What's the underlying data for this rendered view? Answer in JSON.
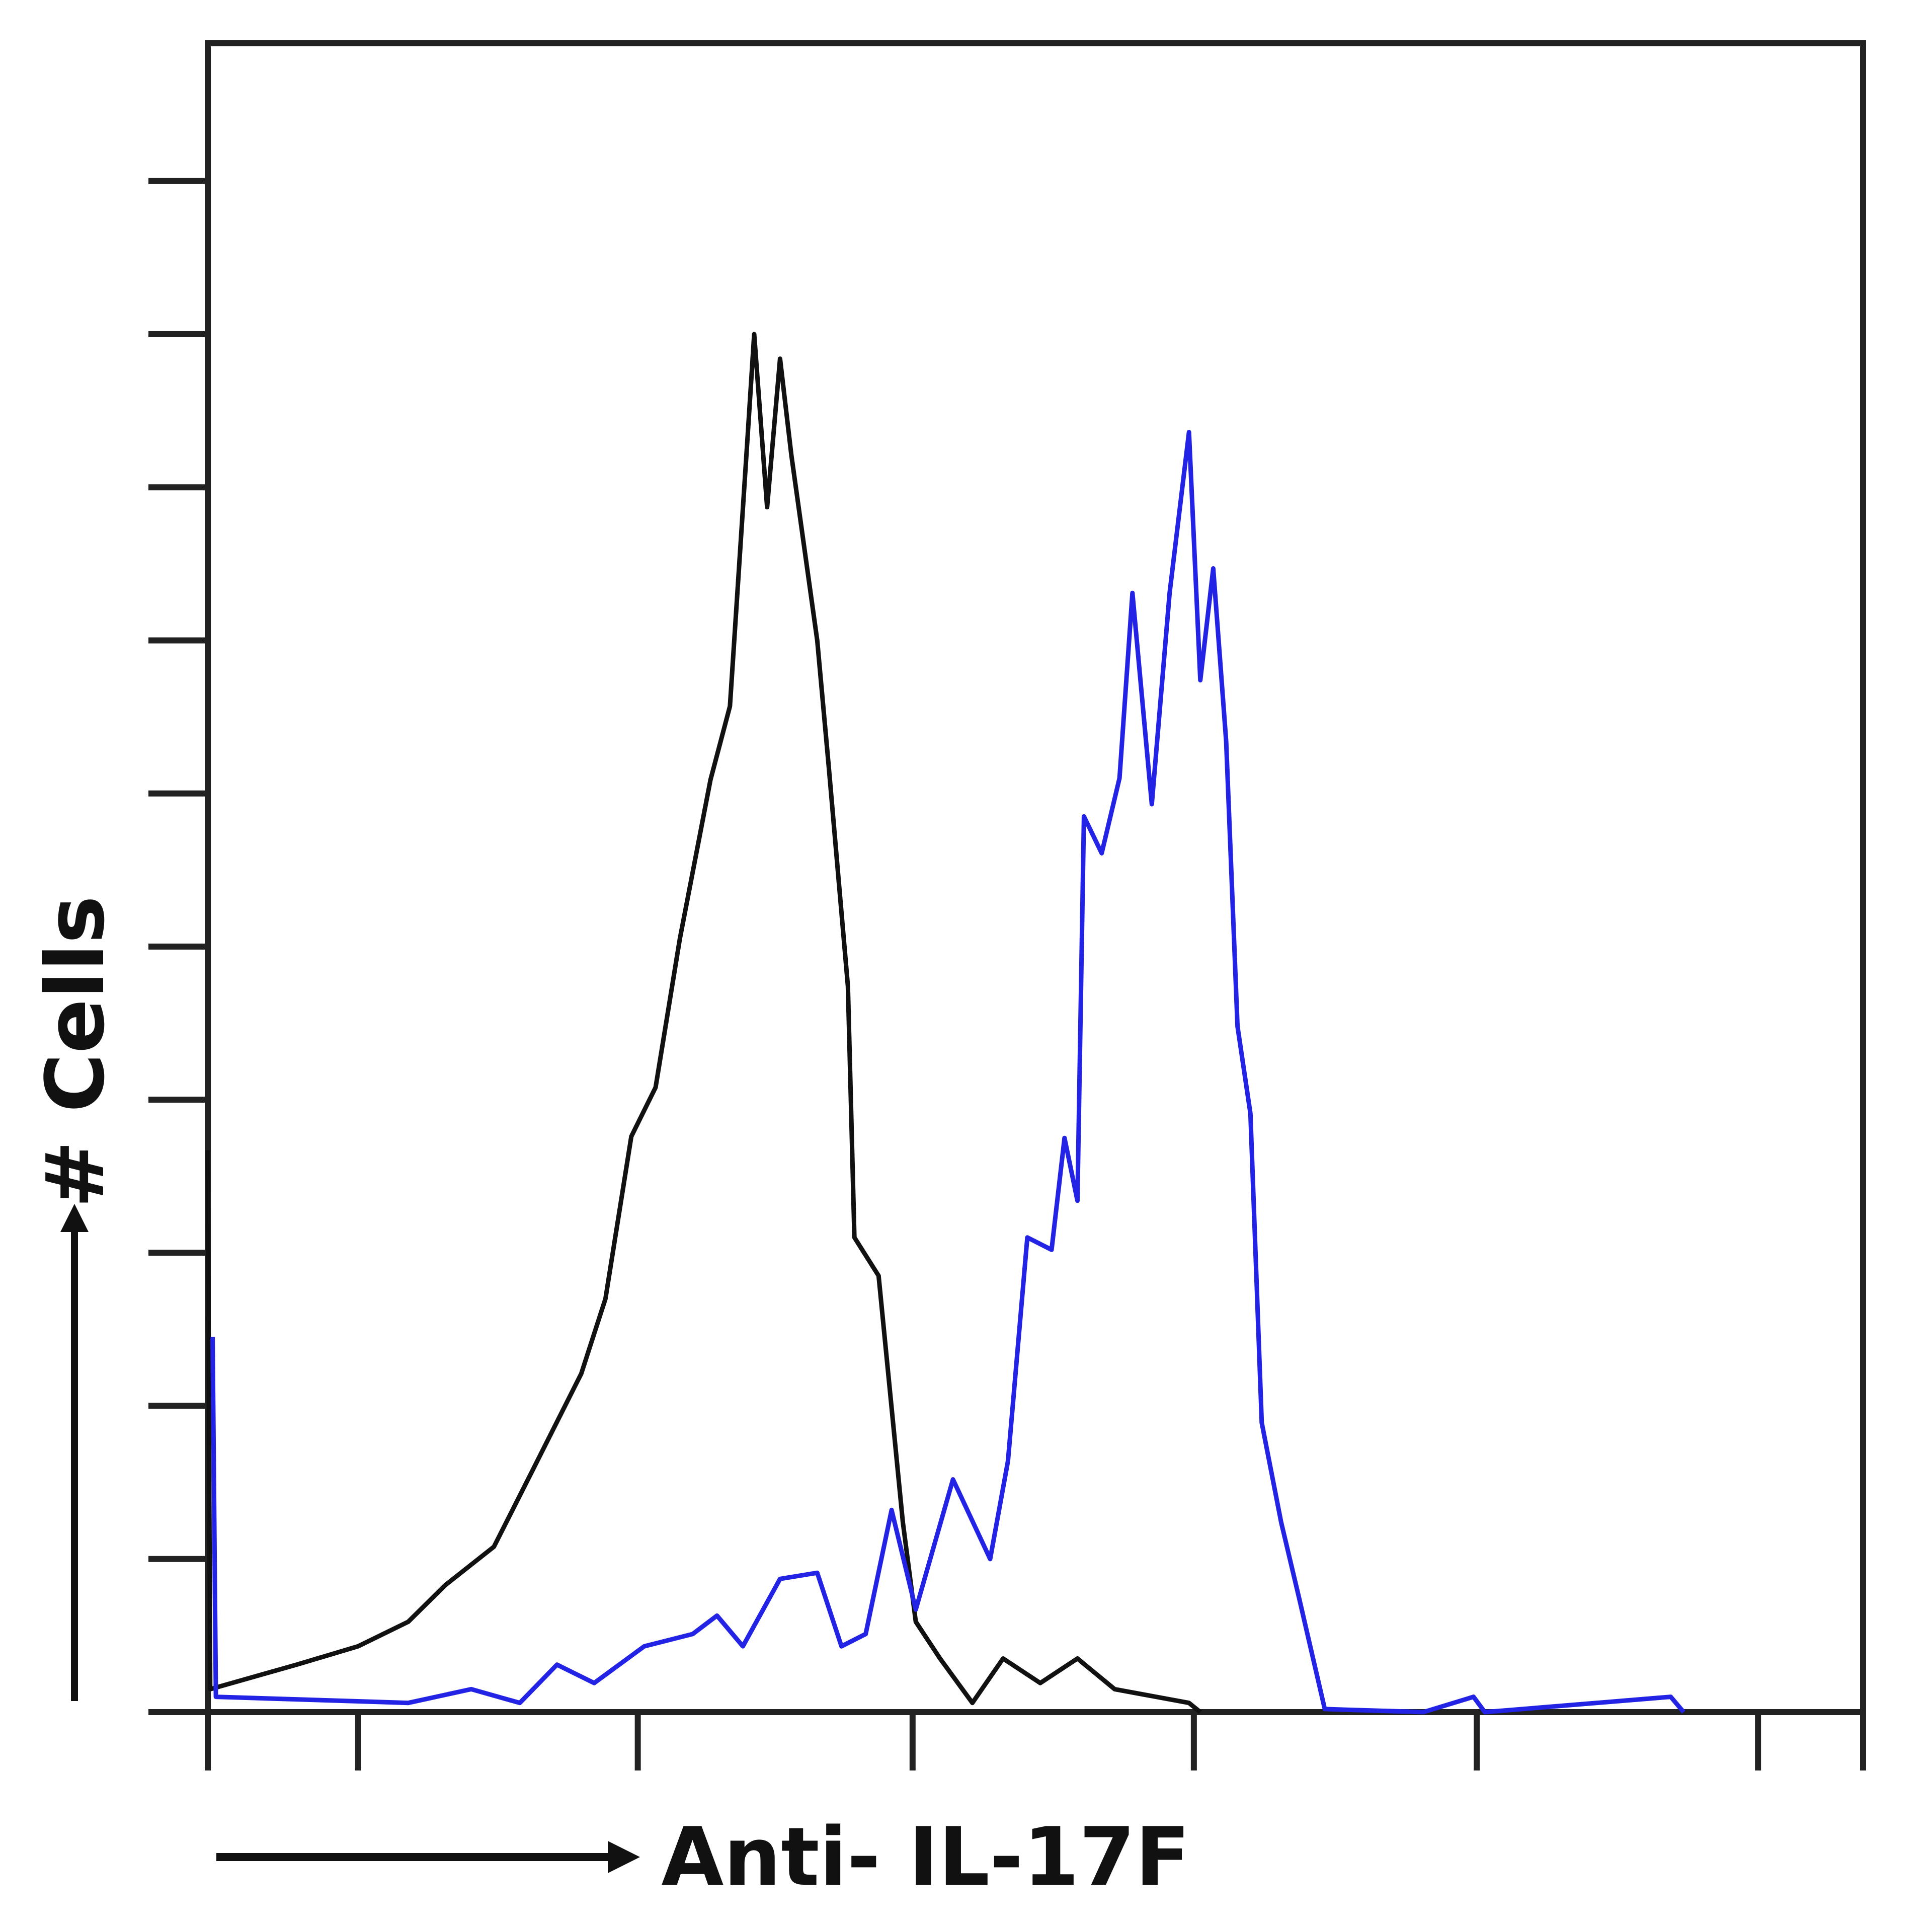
{
  "chart_data": {
    "type": "line",
    "x_label": "Anti- IL-17F",
    "y_label": "# Cells",
    "xlim": [
      0,
      1024
    ],
    "xticks": [
      0,
      93,
      266,
      436,
      610,
      785,
      959,
      1024
    ],
    "ylim": [
      0,
      10.9
    ],
    "yticks": [
      0,
      1,
      2,
      3,
      4,
      5,
      6,
      7,
      8,
      9,
      10
    ],
    "series": [
      {
        "color": "#111111",
        "x": [
          0,
          1.5,
          55,
          93,
          124,
          147,
          177,
          200,
          231,
          246,
          262,
          277,
          292,
          311,
          323,
          334,
          338,
          346,
          354,
          361,
          377,
          384,
          396,
          400,
          415,
          430,
          438,
          453,
          473,
          492,
          515,
          538,
          561,
          607,
          614
        ],
        "values": [
          3.67,
          0.15,
          0.31,
          0.43,
          0.59,
          0.83,
          1.08,
          1.56,
          2.21,
          2.7,
          3.76,
          4.08,
          5.05,
          6.09,
          6.57,
          8.34,
          9.0,
          7.87,
          8.84,
          8.21,
          7.0,
          6.19,
          4.74,
          3.1,
          2.85,
          1.24,
          0.59,
          0.35,
          0.06,
          0.35,
          0.19,
          0.35,
          0.15,
          0.06,
          0
        ]
      },
      {
        "color": "#2323e6",
        "x": [
          3,
          5,
          124,
          163,
          193,
          216,
          239,
          270,
          300,
          315,
          331,
          354,
          377,
          392,
          407,
          423,
          438,
          461,
          484,
          495,
          507,
          522,
          530,
          538,
          542,
          553,
          564,
          572,
          584,
          595,
          607,
          614,
          622,
          630,
          637,
          645,
          652,
          664,
          675,
          691,
          752,
          783,
          790,
          905,
          913
        ],
        "values": [
          2.45,
          0.1,
          0.06,
          0.15,
          0.06,
          0.31,
          0.19,
          0.43,
          0.51,
          0.63,
          0.43,
          0.87,
          0.91,
          0.43,
          0.51,
          1.32,
          0.67,
          1.52,
          1.0,
          1.64,
          3.1,
          3.02,
          3.75,
          3.34,
          5.85,
          5.61,
          6.1,
          7.31,
          5.93,
          7.31,
          8.36,
          6.74,
          7.47,
          6.34,
          4.48,
          3.91,
          1.89,
          1.24,
          0.75,
          0.02,
          0,
          0.1,
          0,
          0.1,
          0
        ]
      }
    ]
  }
}
